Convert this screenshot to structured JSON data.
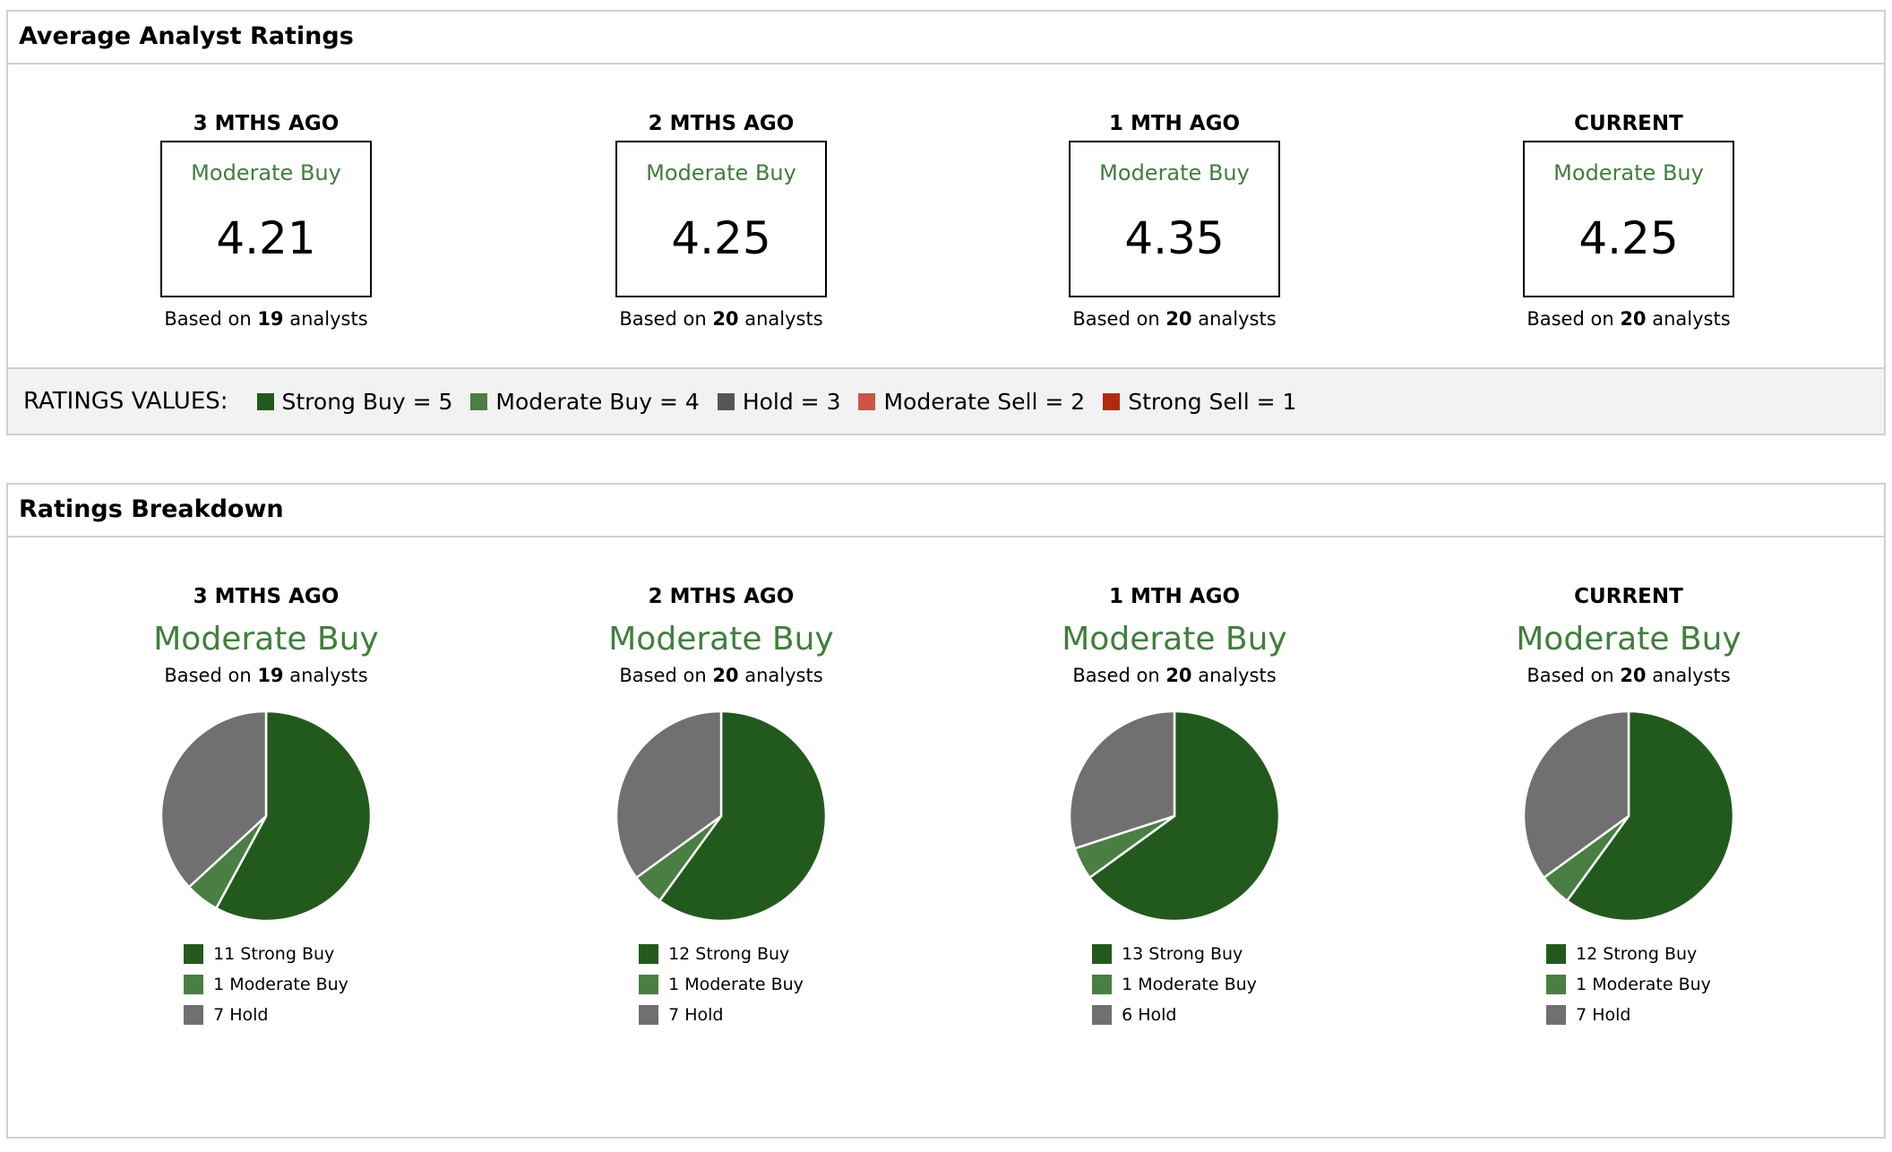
{
  "avg": {
    "title": "Average Analyst Ratings",
    "periods": [
      {
        "label": "3 MTHS AGO",
        "rating": "Moderate Buy",
        "score": "4.21",
        "based_prefix": "Based on ",
        "analysts": "19",
        "based_suffix": " analysts"
      },
      {
        "label": "2 MTHS AGO",
        "rating": "Moderate Buy",
        "score": "4.25",
        "based_prefix": "Based on ",
        "analysts": "20",
        "based_suffix": " analysts"
      },
      {
        "label": "1 MTH AGO",
        "rating": "Moderate Buy",
        "score": "4.35",
        "based_prefix": "Based on ",
        "analysts": "20",
        "based_suffix": " analysts"
      },
      {
        "label": "CURRENT",
        "rating": "Moderate Buy",
        "score": "4.25",
        "based_prefix": "Based on ",
        "analysts": "20",
        "based_suffix": " analysts"
      }
    ],
    "values_title": "RATINGS VALUES:",
    "values": [
      {
        "label": "Strong Buy = 5",
        "color": "#225a1e"
      },
      {
        "label": "Moderate Buy = 4",
        "color": "#4a7f43"
      },
      {
        "label": "Hold = 3",
        "color": "#555555"
      },
      {
        "label": "Moderate Sell = 2",
        "color": "#cf5444"
      },
      {
        "label": "Strong Sell = 1",
        "color": "#b5280e"
      }
    ]
  },
  "breakdown": {
    "title": "Ratings Breakdown",
    "colors": {
      "strong_buy": "#225a1e",
      "moderate_buy": "#4a7f43",
      "hold": "#707070"
    },
    "periods": [
      {
        "label": "3 MTHS AGO",
        "rating": "Moderate Buy",
        "based_prefix": "Based on ",
        "analysts": "19",
        "based_suffix": " analysts",
        "slices": [
          {
            "count": 11,
            "label": "11 Strong Buy",
            "key": "strong_buy"
          },
          {
            "count": 1,
            "label": "1 Moderate Buy",
            "key": "moderate_buy"
          },
          {
            "count": 7,
            "label": "7 Hold",
            "key": "hold"
          }
        ]
      },
      {
        "label": "2 MTHS AGO",
        "rating": "Moderate Buy",
        "based_prefix": "Based on ",
        "analysts": "20",
        "based_suffix": " analysts",
        "slices": [
          {
            "count": 12,
            "label": "12 Strong Buy",
            "key": "strong_buy"
          },
          {
            "count": 1,
            "label": "1 Moderate Buy",
            "key": "moderate_buy"
          },
          {
            "count": 7,
            "label": "7 Hold",
            "key": "hold"
          }
        ]
      },
      {
        "label": "1 MTH AGO",
        "rating": "Moderate Buy",
        "based_prefix": "Based on ",
        "analysts": "20",
        "based_suffix": " analysts",
        "slices": [
          {
            "count": 13,
            "label": "13 Strong Buy",
            "key": "strong_buy"
          },
          {
            "count": 1,
            "label": "1 Moderate Buy",
            "key": "moderate_buy"
          },
          {
            "count": 6,
            "label": "6 Hold",
            "key": "hold"
          }
        ]
      },
      {
        "label": "CURRENT",
        "rating": "Moderate Buy",
        "based_prefix": "Based on ",
        "analysts": "20",
        "based_suffix": " analysts",
        "slices": [
          {
            "count": 12,
            "label": "12 Strong Buy",
            "key": "strong_buy"
          },
          {
            "count": 1,
            "label": "1 Moderate Buy",
            "key": "moderate_buy"
          },
          {
            "count": 7,
            "label": "7 Hold",
            "key": "hold"
          }
        ]
      }
    ]
  }
}
